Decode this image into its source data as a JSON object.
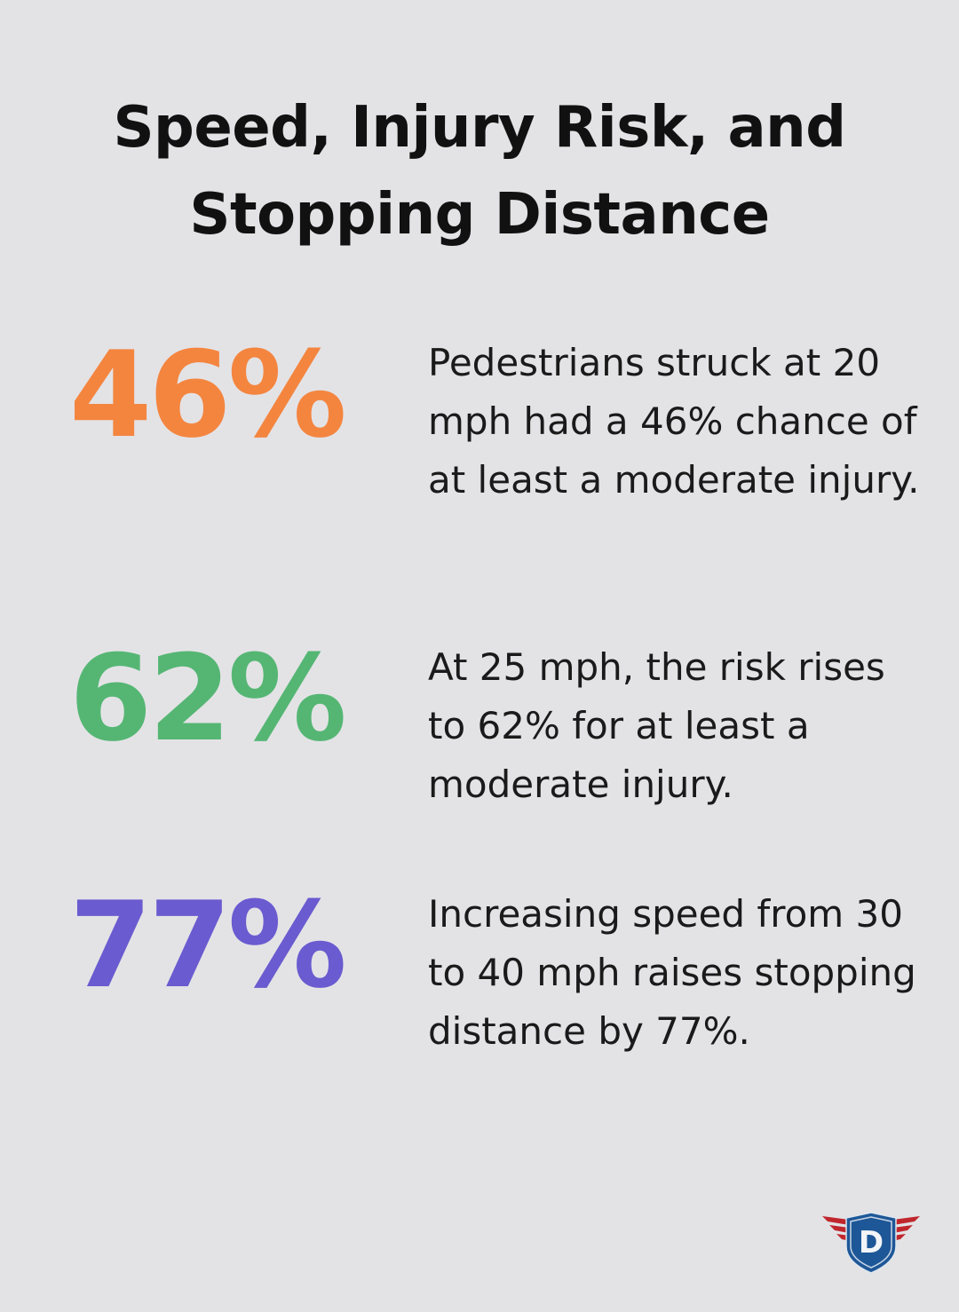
{
  "title": "Speed, Injury Risk, and Stopping Distance",
  "stats": [
    {
      "value": "46%",
      "color": "#f4853f",
      "text": "Pedestrians struck at 20 mph had a 46% chance of at least a moderate injury."
    },
    {
      "value": "62%",
      "color": "#55b673",
      "text": "At 25 mph, the risk rises to 62% for at least a moderate injury."
    },
    {
      "value": "77%",
      "color": "#6a5bd0",
      "text": "Increasing speed from 30 to 40 mph raises stopping distance by 77%."
    }
  ],
  "logo": {
    "letter": "D",
    "icon": "winged-shield-logo"
  }
}
